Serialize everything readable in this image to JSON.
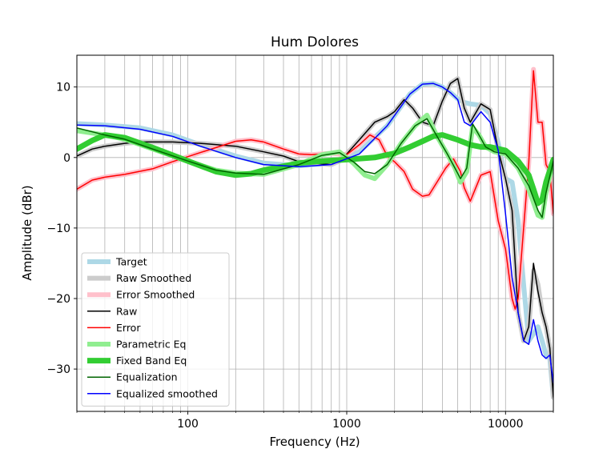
{
  "chart_data": {
    "type": "line",
    "title": "Hum Dolores",
    "xlabel": "Frequency (Hz)",
    "ylabel": "Amplitude (dBr)",
    "xscale": "log",
    "xlim": [
      20,
      20000
    ],
    "ylim": [
      -36,
      14.5
    ],
    "xticks": [
      {
        "value": 100,
        "label": "100"
      },
      {
        "value": 1000,
        "label": "1000"
      },
      {
        "value": 10000,
        "label": "10000"
      }
    ],
    "yticks": [
      {
        "value": 10,
        "label": "10"
      },
      {
        "value": 0,
        "label": "0"
      },
      {
        "value": -10,
        "label": "−10"
      },
      {
        "value": -20,
        "label": "−20"
      },
      {
        "value": -30,
        "label": "−30"
      }
    ],
    "grid": true,
    "legend_position": "lower-left",
    "series": [
      {
        "name": "Target",
        "color": "#add8e6",
        "width": 6,
        "x": [
          20,
          30,
          50,
          80,
          120,
          200,
          300,
          500,
          800,
          1200,
          1800,
          2500,
          3000,
          3500,
          4000,
          4500,
          5000,
          5500,
          6000,
          7000,
          8000,
          9000,
          10000,
          11000,
          12000,
          13000,
          14000,
          15000,
          16000,
          17000,
          18000,
          19000,
          20000
        ],
        "y": [
          4.8,
          4.6,
          4.2,
          3.2,
          1.8,
          0.2,
          -0.8,
          -1.2,
          -0.8,
          0.8,
          4.5,
          9,
          10.4,
          10.5,
          10,
          9.2,
          8.3,
          7.8,
          7.6,
          7.4,
          6.2,
          2,
          -3,
          -3.5,
          -9,
          -18,
          -26,
          -25,
          -24,
          -26,
          -28,
          -28.5,
          -34
        ]
      },
      {
        "name": "Raw Smoothed",
        "color": "#cccccc",
        "width": 6,
        "x": [
          20,
          25,
          30,
          40,
          50,
          80,
          120,
          200,
          300,
          400,
          500,
          600,
          700,
          800,
          900,
          1000,
          1200,
          1500,
          1800,
          2000,
          2300,
          2600,
          3000,
          3500,
          4000,
          4500,
          5000,
          5500,
          6000,
          7000,
          8000,
          9000,
          10000,
          11000,
          12000,
          13000,
          14000,
          15000,
          16000,
          17000,
          18000,
          19000,
          20000
        ],
        "y": [
          0.2,
          1.2,
          1.6,
          2,
          2.2,
          2.2,
          2,
          1.6,
          0.8,
          0.2,
          -0.6,
          -0.8,
          -0.9,
          -1,
          -0.5,
          0.5,
          2.5,
          5,
          5.8,
          6.5,
          8.2,
          7,
          5,
          4.5,
          8,
          10.5,
          11.2,
          7,
          5,
          7.6,
          6.8,
          1,
          -3,
          -7.5,
          -22,
          -26,
          -24,
          -16,
          -18,
          -22,
          -24,
          -27,
          -34
        ]
      },
      {
        "name": "Error Smoothed",
        "color": "#ffc0cb",
        "width": 6,
        "x": [
          20,
          25,
          30,
          40,
          60,
          80,
          120,
          200,
          250,
          300,
          400,
          500,
          600,
          800,
          1000,
          1200,
          1400,
          1600,
          1800,
          2000,
          2300,
          2600,
          3000,
          3300,
          3700,
          4200,
          4700,
          5200,
          5500,
          6000,
          7000,
          8000,
          9000,
          10000,
          11000,
          11500,
          12000,
          13000,
          14000,
          15000,
          16000,
          17000,
          18000,
          19000,
          20000
        ],
        "y": [
          -4.5,
          -3.2,
          -2.8,
          -2.4,
          -1.6,
          -0.6,
          0.7,
          2.3,
          2.5,
          2.2,
          1.2,
          0.5,
          0.4,
          0.6,
          0.4,
          1.8,
          3.2,
          2.5,
          0.2,
          -0.6,
          -2,
          -4.5,
          -5.5,
          -5.3,
          -3.5,
          -1.5,
          -0.2,
          -2,
          -4.3,
          -6.2,
          -2.5,
          -2,
          -9,
          -13,
          -20,
          -21.5,
          -20,
          -10,
          -0.8,
          12.5,
          5,
          5,
          -1,
          -2,
          -8
        ]
      },
      {
        "name": "Raw",
        "color": "#000000",
        "width": 1.5,
        "x": [
          20,
          25,
          30,
          40,
          50,
          80,
          120,
          200,
          300,
          400,
          500,
          600,
          700,
          800,
          900,
          1000,
          1200,
          1500,
          1800,
          2000,
          2300,
          2600,
          3000,
          3500,
          4000,
          4500,
          5000,
          5500,
          6000,
          7000,
          8000,
          9000,
          10000,
          11000,
          12000,
          13000,
          14000,
          15000,
          16000,
          17000,
          18000,
          19000,
          20000
        ],
        "y": [
          0.2,
          1.2,
          1.6,
          2,
          2.2,
          2.2,
          2,
          1.6,
          0.8,
          0.2,
          -0.6,
          -0.8,
          -0.9,
          -1,
          -0.5,
          0.5,
          2.5,
          5,
          5.8,
          6.5,
          8.2,
          7,
          5,
          4.5,
          8,
          10.5,
          11.2,
          7,
          5,
          7.6,
          6.8,
          1,
          -3,
          -7.5,
          -22,
          -26,
          -24,
          -15,
          -19,
          -22,
          -24,
          -27,
          -34
        ]
      },
      {
        "name": "Error",
        "color": "#ff0000",
        "width": 1.5,
        "x": [
          20,
          25,
          30,
          40,
          60,
          80,
          120,
          200,
          250,
          300,
          400,
          500,
          600,
          800,
          1000,
          1200,
          1400,
          1600,
          1800,
          2000,
          2300,
          2600,
          3000,
          3300,
          3700,
          4200,
          4700,
          5200,
          5500,
          6000,
          7000,
          8000,
          9000,
          10000,
          11000,
          11500,
          12000,
          13000,
          14000,
          15000,
          16000,
          17000,
          18000,
          19000,
          20000
        ],
        "y": [
          -4.5,
          -3.2,
          -2.8,
          -2.4,
          -1.6,
          -0.6,
          0.7,
          2.3,
          2.5,
          2.2,
          1.2,
          0.5,
          0.4,
          0.6,
          0.4,
          1.8,
          3.2,
          2.5,
          0.2,
          -0.6,
          -2,
          -4.5,
          -5.5,
          -5.3,
          -3.5,
          -1.5,
          -0.2,
          -2,
          -4.3,
          -6.2,
          -2.5,
          -2,
          -9,
          -13,
          -20,
          -21.5,
          -20,
          -10,
          -0.8,
          12.3,
          5,
          5,
          -1,
          -2,
          -8
        ]
      },
      {
        "name": "Parametric Eq",
        "color": "#90ee90",
        "width": 6,
        "x": [
          20,
          30,
          40,
          60,
          100,
          150,
          200,
          300,
          500,
          700,
          900,
          1100,
          1300,
          1500,
          1800,
          2200,
          2700,
          3200,
          3700,
          4300,
          4800,
          5200,
          5700,
          6200,
          6800,
          7500,
          8500,
          10000,
          12000,
          14000,
          16000,
          17000,
          18000,
          20000
        ],
        "y": [
          3.8,
          3.2,
          2.6,
          1.2,
          -0.5,
          -1.8,
          -2.2,
          -2.4,
          -1,
          0.4,
          0.8,
          -0.8,
          -2.5,
          -3,
          -1,
          2,
          4.5,
          6,
          3,
          0.5,
          -1.5,
          -3.5,
          -2,
          4.3,
          3.2,
          1.5,
          0.8,
          0.5,
          -1.5,
          -4.5,
          -8.2,
          -8.5,
          -5,
          -0.5
        ]
      },
      {
        "name": "Fixed Band Eq",
        "color": "#32cd32",
        "width": 7,
        "x": [
          20,
          25,
          30,
          40,
          60,
          100,
          150,
          200,
          250,
          300,
          500,
          700,
          1000,
          1500,
          2000,
          2500,
          3000,
          3500,
          4000,
          5000,
          6000,
          7000,
          8000,
          10000,
          12000,
          14000,
          15000,
          16000,
          17000,
          18000,
          20000
        ],
        "y": [
          1.2,
          2.4,
          3.2,
          2.8,
          1.4,
          -0.5,
          -2,
          -2.5,
          -2.3,
          -1.8,
          -0.8,
          -0.5,
          -0.3,
          0,
          0.6,
          1.5,
          2.3,
          3,
          3.2,
          2.5,
          1.8,
          1.5,
          1.5,
          1,
          -0.5,
          -2.5,
          -4.5,
          -6.5,
          -6,
          -3.5,
          -0.3
        ]
      },
      {
        "name": "Equalization",
        "color": "#006400",
        "width": 1.5,
        "x": [
          20,
          30,
          40,
          60,
          100,
          150,
          200,
          300,
          500,
          700,
          900,
          1100,
          1300,
          1500,
          1800,
          2200,
          2700,
          3200,
          3700,
          4300,
          4800,
          5200,
          5700,
          6200,
          6800,
          7500,
          8500,
          10000,
          12000,
          14000,
          16000,
          17000,
          18000,
          20000
        ],
        "y": [
          4.2,
          3.2,
          2.6,
          1.2,
          -0.5,
          -1.8,
          -2.2,
          -2.4,
          -1,
          0.3,
          0.7,
          -0.6,
          -2,
          -2.3,
          -1,
          2,
          4.5,
          5.5,
          3,
          0.5,
          -1.5,
          -3,
          -1.5,
          4.8,
          3.2,
          1.5,
          0.8,
          0.5,
          -1.5,
          -4,
          -7.5,
          -8.5,
          -5,
          -0.5
        ]
      },
      {
        "name": "Equalized smoothed",
        "color": "#0000ff",
        "width": 1.5,
        "x": [
          20,
          30,
          50,
          80,
          120,
          200,
          300,
          500,
          800,
          1200,
          1800,
          2500,
          3000,
          3500,
          4000,
          4500,
          5000,
          5500,
          6000,
          7000,
          8000,
          9000,
          10000,
          11000,
          12000,
          13000,
          14000,
          15000,
          16000,
          17000,
          18000,
          19000,
          20000
        ],
        "y": [
          4.6,
          4.5,
          4,
          3,
          1.6,
          0,
          -1,
          -1.3,
          -1,
          0.5,
          4.5,
          9,
          10.4,
          10.5,
          10,
          9.2,
          8.2,
          5,
          4.5,
          6.5,
          5,
          1,
          -8,
          -17,
          -22,
          -26,
          -26.5,
          -23,
          -26,
          -28,
          -28.5,
          -28,
          -32
        ]
      }
    ]
  }
}
